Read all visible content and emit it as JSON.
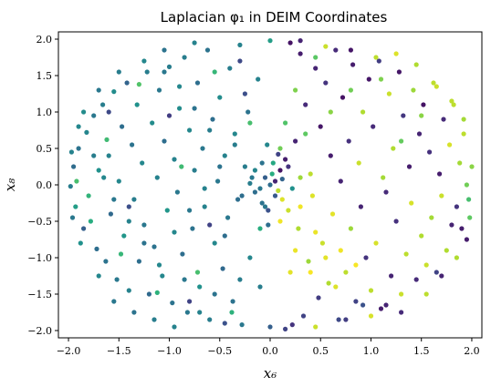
{
  "chart_data": {
    "type": "scatter",
    "title": "Laplacian φ₁ in DEIM Coordinates",
    "xlabel": "x₆",
    "ylabel": "x₈",
    "xlim": [
      -2.1,
      2.1
    ],
    "ylim": [
      -2.1,
      2.1
    ],
    "xticks": [
      -2.0,
      -1.5,
      -1.0,
      -0.5,
      0.0,
      0.5,
      1.0,
      1.5,
      2.0
    ],
    "yticks": [
      -2.0,
      -1.5,
      -1.0,
      -0.5,
      0.0,
      0.5,
      1.0,
      1.5,
      2.0
    ],
    "xtick_labels": [
      "−2.0",
      "−1.5",
      "−1.0",
      "−0.5",
      "0.0",
      "0.5",
      "1.0",
      "1.5",
      "2.0"
    ],
    "ytick_labels": [
      "−2.0",
      "−1.5",
      "−1.0",
      "−0.5",
      "0.0",
      "0.5",
      "1.0",
      "1.5",
      "2.0"
    ],
    "grid": false,
    "colormap": "viridis",
    "colors": {
      "viridis": [
        "#440154",
        "#472d7b",
        "#3b528b",
        "#2c728e",
        "#21918c",
        "#28ae80",
        "#5ec962",
        "#addc30",
        "#fde725"
      ]
    },
    "note_points": "Points listed as [x, y, c] where c is the color value (0-1, viridis) for the eigenvector",
    "points": [
      [
        -1.98,
        -0.02,
        0.42
      ],
      [
        -1.95,
        0.25,
        0.35
      ],
      [
        -1.93,
        -0.3,
        0.55
      ],
      [
        -1.9,
        0.5,
        0.38
      ],
      [
        -1.85,
        -0.6,
        0.3
      ],
      [
        -1.82,
        0.72,
        0.45
      ],
      [
        -1.8,
        -0.15,
        0.65
      ],
      [
        -1.75,
        0.95,
        0.4
      ],
      [
        -1.72,
        -0.88,
        0.36
      ],
      [
        -1.7,
        0.2,
        0.5
      ],
      [
        -1.66,
        1.1,
        0.42
      ],
      [
        -1.63,
        -1.05,
        0.38
      ],
      [
        -1.6,
        0.4,
        0.44
      ],
      [
        -1.58,
        -0.4,
        0.34
      ],
      [
        -1.55,
        1.28,
        0.48
      ],
      [
        -1.52,
        -1.3,
        0.4
      ],
      [
        -1.5,
        0.05,
        0.46
      ],
      [
        -1.47,
        0.8,
        0.36
      ],
      [
        -1.45,
        -0.7,
        0.52
      ],
      [
        -1.42,
        1.4,
        0.32
      ],
      [
        -1.4,
        -1.45,
        0.44
      ],
      [
        -1.37,
        0.55,
        0.38
      ],
      [
        -1.35,
        -0.2,
        0.42
      ],
      [
        -1.32,
        1.1,
        0.5
      ],
      [
        -1.3,
        -1.05,
        0.36
      ],
      [
        -1.27,
        0.3,
        0.46
      ],
      [
        -1.25,
        -0.55,
        0.4
      ],
      [
        -1.22,
        1.55,
        0.42
      ],
      [
        -1.2,
        -1.5,
        0.34
      ],
      [
        -1.17,
        0.85,
        0.48
      ],
      [
        -1.15,
        -0.85,
        0.38
      ],
      [
        -1.12,
        0.1,
        0.44
      ],
      [
        -1.1,
        1.3,
        0.4
      ],
      [
        -1.07,
        -1.25,
        0.46
      ],
      [
        -1.05,
        0.6,
        0.36
      ],
      [
        -1.02,
        -0.35,
        0.52
      ],
      [
        -1.0,
        1.62,
        0.42
      ],
      [
        -0.97,
        -1.62,
        0.38
      ],
      [
        -0.95,
        0.35,
        0.44
      ],
      [
        -0.92,
        -0.1,
        0.4
      ],
      [
        -0.9,
        1.05,
        0.48
      ],
      [
        -0.87,
        -0.95,
        0.36
      ],
      [
        -0.85,
        1.75,
        0.42
      ],
      [
        -0.82,
        -1.75,
        0.4
      ],
      [
        -0.8,
        0.75,
        0.46
      ],
      [
        -0.77,
        -0.6,
        0.38
      ],
      [
        -0.75,
        0.2,
        0.42
      ],
      [
        -0.72,
        1.4,
        0.36
      ],
      [
        -0.7,
        -1.4,
        0.5
      ],
      [
        -0.67,
        0.5,
        0.4
      ],
      [
        -0.65,
        -0.3,
        0.44
      ],
      [
        -0.62,
        1.85,
        0.38
      ],
      [
        -0.6,
        -1.85,
        0.42
      ],
      [
        -0.57,
        0.9,
        0.36
      ],
      [
        -0.55,
        -0.8,
        0.46
      ],
      [
        -0.52,
        0.05,
        0.4
      ],
      [
        -0.5,
        1.2,
        0.48
      ],
      [
        -0.47,
        -1.15,
        0.34
      ],
      [
        -0.45,
        0.4,
        0.44
      ],
      [
        -0.42,
        -0.45,
        0.4
      ],
      [
        -0.4,
        1.6,
        0.42
      ],
      [
        -0.37,
        -1.6,
        0.38
      ],
      [
        -0.35,
        0.7,
        0.46
      ],
      [
        -0.32,
        -0.2,
        0.36
      ],
      [
        -0.3,
        1.92,
        0.44
      ],
      [
        -0.28,
        -1.92,
        0.4
      ],
      [
        -0.25,
        0.25,
        0.42
      ],
      [
        -0.22,
        1.0,
        0.38
      ],
      [
        -0.2,
        -1.0,
        0.46
      ],
      [
        -0.18,
        0.1,
        0.4
      ],
      [
        -0.15,
        -0.1,
        0.36
      ],
      [
        -0.12,
        1.45,
        0.44
      ],
      [
        -0.1,
        -1.4,
        0.42
      ],
      [
        -0.08,
        0.3,
        0.38
      ],
      [
        -0.05,
        -0.3,
        0.4
      ],
      [
        -0.03,
        0.55,
        0.46
      ],
      [
        -0.02,
        -0.55,
        0.36
      ],
      [
        0.0,
        1.98,
        0.55
      ],
      [
        0.0,
        -1.95,
        0.3
      ],
      [
        0.02,
        0.15,
        0.62
      ],
      [
        -1.92,
        0.05,
        0.7
      ],
      [
        -1.78,
        -0.5,
        0.62
      ],
      [
        -1.62,
        0.62,
        0.68
      ],
      [
        -1.48,
        -0.95,
        0.66
      ],
      [
        -1.3,
        1.38,
        0.72
      ],
      [
        -1.12,
        -1.48,
        0.64
      ],
      [
        -0.88,
        0.25,
        0.68
      ],
      [
        -0.72,
        -1.2,
        0.7
      ],
      [
        -0.55,
        1.55,
        0.66
      ],
      [
        -0.38,
        -1.75,
        0.64
      ],
      [
        -0.2,
        0.85,
        0.7
      ],
      [
        -0.1,
        -0.6,
        0.62
      ],
      [
        -1.0,
        0.95,
        0.18
      ],
      [
        -0.6,
        -0.55,
        0.2
      ],
      [
        -0.3,
        1.7,
        0.22
      ],
      [
        -1.4,
        -0.3,
        0.24
      ],
      [
        -0.8,
        -1.6,
        0.2
      ],
      [
        -0.45,
        -1.9,
        0.25
      ],
      [
        -0.25,
        1.25,
        0.24
      ],
      [
        -1.6,
        1.0,
        0.22
      ],
      [
        0.05,
        0.05,
        0.1
      ],
      [
        0.08,
        -0.08,
        0.9
      ],
      [
        0.1,
        0.2,
        0.05
      ],
      [
        0.12,
        -0.2,
        0.95
      ],
      [
        0.15,
        0.35,
        0.08
      ],
      [
        0.18,
        -0.35,
        0.92
      ],
      [
        0.2,
        1.95,
        0.05
      ],
      [
        0.22,
        -1.92,
        0.15
      ],
      [
        0.25,
        0.6,
        0.1
      ],
      [
        0.28,
        -0.6,
        0.88
      ],
      [
        0.3,
        1.8,
        0.08
      ],
      [
        0.33,
        -1.8,
        0.2
      ],
      [
        0.35,
        1.1,
        0.12
      ],
      [
        0.38,
        -1.05,
        0.85
      ],
      [
        0.4,
        0.15,
        0.9
      ],
      [
        0.42,
        -0.15,
        0.95
      ],
      [
        0.45,
        1.6,
        0.1
      ],
      [
        0.48,
        -1.55,
        0.18
      ],
      [
        0.5,
        0.8,
        0.06
      ],
      [
        0.52,
        -0.8,
        0.92
      ],
      [
        0.55,
        1.4,
        0.15
      ],
      [
        0.58,
        -1.35,
        0.88
      ],
      [
        0.6,
        0.4,
        0.08
      ],
      [
        0.62,
        -0.4,
        0.96
      ],
      [
        0.65,
        1.85,
        0.12
      ],
      [
        0.68,
        -1.85,
        0.22
      ],
      [
        0.7,
        0.05,
        0.1
      ],
      [
        0.72,
        1.2,
        0.05
      ],
      [
        0.75,
        -1.2,
        0.9
      ],
      [
        0.78,
        0.6,
        0.14
      ],
      [
        0.8,
        -0.6,
        0.85
      ],
      [
        0.82,
        1.65,
        0.08
      ],
      [
        0.85,
        -1.6,
        0.2
      ],
      [
        0.88,
        0.3,
        0.92
      ],
      [
        0.9,
        -0.3,
        0.1
      ],
      [
        0.92,
        1.0,
        0.88
      ],
      [
        0.95,
        -1.0,
        0.15
      ],
      [
        0.98,
        1.45,
        0.06
      ],
      [
        1.0,
        -1.45,
        0.9
      ],
      [
        1.02,
        0.8,
        0.12
      ],
      [
        1.05,
        -0.8,
        0.94
      ],
      [
        1.08,
        1.7,
        0.18
      ],
      [
        1.1,
        -1.7,
        0.08
      ],
      [
        1.12,
        0.1,
        0.86
      ],
      [
        1.15,
        -0.1,
        0.12
      ],
      [
        1.18,
        1.25,
        0.92
      ],
      [
        1.2,
        -1.25,
        0.1
      ],
      [
        1.22,
        0.5,
        0.88
      ],
      [
        1.25,
        -0.5,
        0.14
      ],
      [
        1.28,
        1.55,
        0.06
      ],
      [
        1.3,
        -1.5,
        0.92
      ],
      [
        1.32,
        0.95,
        0.16
      ],
      [
        1.35,
        -0.95,
        0.9
      ],
      [
        1.38,
        0.25,
        0.08
      ],
      [
        1.4,
        -0.25,
        0.94
      ],
      [
        1.42,
        1.3,
        0.85
      ],
      [
        1.45,
        -1.3,
        0.12
      ],
      [
        1.48,
        0.7,
        0.1
      ],
      [
        1.5,
        -0.7,
        0.88
      ],
      [
        1.52,
        1.1,
        0.05
      ],
      [
        1.55,
        -1.1,
        0.92
      ],
      [
        1.58,
        0.45,
        0.14
      ],
      [
        1.6,
        -0.45,
        0.86
      ],
      [
        1.62,
        1.4,
        0.9
      ],
      [
        1.65,
        -1.2,
        0.2
      ],
      [
        1.68,
        0.15,
        0.08
      ],
      [
        1.7,
        -0.15,
        0.92
      ],
      [
        1.72,
        0.9,
        0.12
      ],
      [
        1.75,
        -0.9,
        0.88
      ],
      [
        1.78,
        0.55,
        0.94
      ],
      [
        1.8,
        -0.55,
        0.1
      ],
      [
        1.82,
        1.1,
        0.9
      ],
      [
        1.85,
        -0.3,
        0.15
      ],
      [
        1.88,
        0.3,
        0.86
      ],
      [
        1.9,
        -0.6,
        0.08
      ],
      [
        1.92,
        0.7,
        0.9
      ],
      [
        1.95,
        0.0,
        0.78
      ],
      [
        1.97,
        -0.2,
        0.7
      ],
      [
        2.0,
        0.25,
        0.82
      ],
      [
        1.98,
        -0.45,
        0.75
      ],
      [
        0.1,
        -0.5,
        0.98
      ],
      [
        0.25,
        -0.9,
        0.97
      ],
      [
        0.4,
        -1.2,
        0.99
      ],
      [
        0.55,
        -1.0,
        0.96
      ],
      [
        0.3,
        -0.3,
        0.98
      ],
      [
        0.45,
        -0.65,
        0.97
      ],
      [
        0.65,
        -1.4,
        0.95
      ],
      [
        0.85,
        -1.1,
        0.99
      ],
      [
        0.2,
        -1.2,
        0.96
      ],
      [
        0.7,
        -0.9,
        0.98
      ],
      [
        0.1,
        0.5,
        0.78
      ],
      [
        0.15,
        0.85,
        0.72
      ],
      [
        0.25,
        1.3,
        0.8
      ],
      [
        0.35,
        0.7,
        0.75
      ],
      [
        0.6,
        1.0,
        0.82
      ],
      [
        0.45,
        1.75,
        0.74
      ],
      [
        0.8,
        1.3,
        0.78
      ],
      [
        1.1,
        1.45,
        0.8
      ],
      [
        1.3,
        0.6,
        0.76
      ],
      [
        1.5,
        0.95,
        0.82
      ],
      [
        0.0,
        0.0,
        0.35
      ],
      [
        -0.05,
        0.1,
        0.3
      ],
      [
        0.05,
        -0.15,
        0.28
      ],
      [
        -0.1,
        -0.05,
        0.4
      ],
      [
        0.12,
        0.08,
        0.32
      ],
      [
        -0.15,
        0.2,
        0.45
      ],
      [
        0.18,
        0.25,
        0.15
      ],
      [
        -0.08,
        -0.25,
        0.38
      ],
      [
        0.22,
        -0.05,
        0.5
      ],
      [
        -0.2,
        0.02,
        0.42
      ],
      [
        0.03,
        0.3,
        0.6
      ],
      [
        -0.02,
        -0.35,
        0.25
      ],
      [
        0.3,
        0.1,
        0.85
      ],
      [
        -0.28,
        -0.15,
        0.36
      ],
      [
        0.08,
        0.42,
        0.2
      ],
      [
        -1.7,
        -1.25,
        0.46
      ],
      [
        -1.55,
        -1.6,
        0.4
      ],
      [
        -1.35,
        -1.75,
        0.38
      ],
      [
        -1.15,
        -1.85,
        0.42
      ],
      [
        -0.95,
        -1.95,
        0.44
      ],
      [
        -1.7,
        1.3,
        0.4
      ],
      [
        -1.5,
        1.55,
        0.42
      ],
      [
        -1.25,
        1.7,
        0.46
      ],
      [
        -1.05,
        1.85,
        0.38
      ],
      [
        -0.75,
        1.95,
        0.44
      ],
      [
        -1.88,
        -0.8,
        0.5
      ],
      [
        -1.9,
        0.8,
        0.46
      ],
      [
        -1.96,
        -0.45,
        0.4
      ],
      [
        -1.97,
        0.45,
        0.44
      ],
      [
        -1.85,
        1.0,
        0.48
      ],
      [
        1.25,
        1.8,
        0.95
      ],
      [
        1.45,
        1.65,
        0.88
      ],
      [
        1.65,
        1.35,
        0.92
      ],
      [
        1.8,
        1.15,
        0.9
      ],
      [
        1.92,
        0.9,
        0.86
      ],
      [
        1.3,
        -1.75,
        0.12
      ],
      [
        1.55,
        -1.5,
        0.9
      ],
      [
        1.7,
        -1.25,
        0.1
      ],
      [
        1.85,
        -1.0,
        0.88
      ],
      [
        1.95,
        -0.75,
        0.08
      ],
      [
        0.3,
        1.98,
        0.1
      ],
      [
        0.55,
        1.9,
        0.92
      ],
      [
        0.8,
        1.85,
        0.06
      ],
      [
        1.05,
        1.75,
        0.9
      ],
      [
        0.15,
        -1.98,
        0.2
      ],
      [
        0.45,
        -1.95,
        0.92
      ],
      [
        0.75,
        -1.85,
        0.18
      ],
      [
        1.0,
        -1.8,
        0.94
      ],
      [
        1.15,
        -1.65,
        0.1
      ],
      [
        0.92,
        -1.65,
        0.25
      ],
      [
        -0.35,
        0.55,
        0.42
      ],
      [
        -0.5,
        0.25,
        0.38
      ],
      [
        -0.65,
        -0.05,
        0.44
      ],
      [
        -0.8,
        -0.35,
        0.4
      ],
      [
        -0.95,
        -0.65,
        0.46
      ],
      [
        -0.45,
        -0.7,
        0.36
      ],
      [
        -0.6,
        0.75,
        0.42
      ],
      [
        -0.75,
        1.05,
        0.38
      ],
      [
        -0.9,
        1.35,
        0.46
      ],
      [
        -1.05,
        1.55,
        0.4
      ],
      [
        -0.3,
        -1.3,
        0.42
      ],
      [
        -0.55,
        -1.5,
        0.38
      ],
      [
        -0.7,
        -1.75,
        0.44
      ],
      [
        -0.85,
        -1.3,
        0.4
      ],
      [
        -1.1,
        -1.1,
        0.46
      ],
      [
        -1.25,
        -0.8,
        0.38
      ],
      [
        -1.4,
        -0.5,
        0.44
      ],
      [
        -1.55,
        -0.2,
        0.4
      ],
      [
        -1.65,
        0.1,
        0.46
      ],
      [
        -1.75,
        0.4,
        0.42
      ]
    ]
  }
}
